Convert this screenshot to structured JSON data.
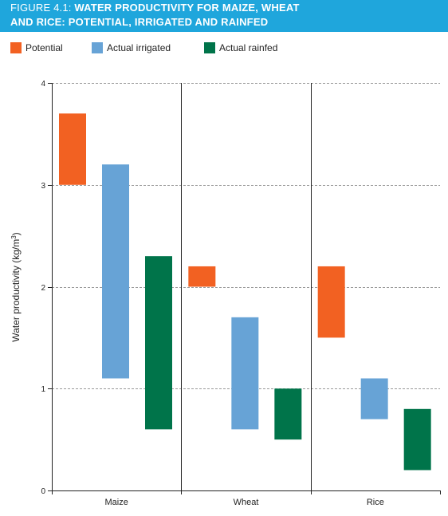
{
  "header": {
    "title_prefix": "FIGURE 4.1:",
    "title_line1": "WATER PRODUCTIVITY FOR MAIZE, WHEAT",
    "title_line2": "AND RICE: POTENTIAL, IRRIGATED AND RAINFED",
    "background_color": "#1fa6dc"
  },
  "chart_data": {
    "type": "bar",
    "subtype": "floating-range",
    "title": "WATER PRODUCTIVITY FOR MAIZE, WHEAT AND RICE: POTENTIAL, IRRIGATED AND RAINFED",
    "ylabel": "Water productivity (kg/m³)",
    "ylabel_base": "Water productivity (kg/m",
    "ylabel_sup": "3",
    "ylabel_tail": ")",
    "xlabel": "",
    "ylim": [
      0,
      4
    ],
    "yticks": [
      0,
      1,
      2,
      3,
      4
    ],
    "grid": "horizontal dashed",
    "legend_position": "top-left",
    "categories": [
      "Maize",
      "Wheat",
      "Rice"
    ],
    "series": [
      {
        "name": "Potential",
        "color": "#f26122",
        "ranges": [
          [
            3.0,
            3.7
          ],
          [
            2.0,
            2.2
          ],
          [
            1.5,
            2.2
          ]
        ]
      },
      {
        "name": "Actual irrigated",
        "color": "#67a3d6",
        "ranges": [
          [
            1.1,
            3.2
          ],
          [
            0.6,
            1.7
          ],
          [
            0.7,
            1.1
          ]
        ]
      },
      {
        "name": "Actual rainfed",
        "color": "#00744a",
        "ranges": [
          [
            0.6,
            2.3
          ],
          [
            0.5,
            1.0
          ],
          [
            0.2,
            0.8
          ]
        ]
      }
    ]
  }
}
